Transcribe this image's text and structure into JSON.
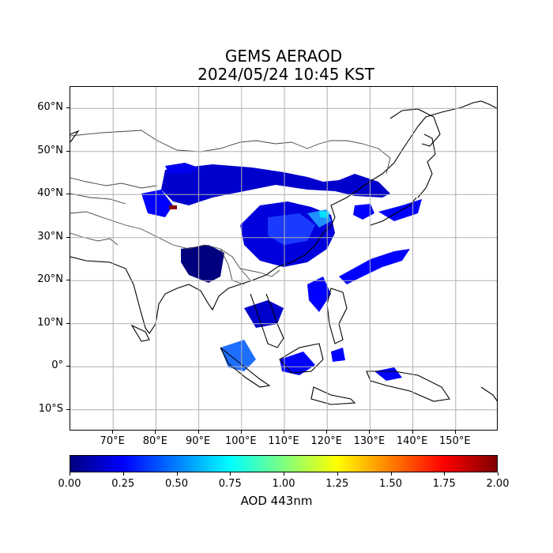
{
  "header": {
    "title": "GEMS AERAOD",
    "subtitle": "2024/05/24 10:45 KST"
  },
  "map": {
    "lat_range": [
      -15,
      65
    ],
    "lon_range": [
      60,
      160
    ],
    "grid": true,
    "lat_ticks": [
      "60°N",
      "50°N",
      "40°N",
      "30°N",
      "20°N",
      "10°N",
      "0°",
      "10°S"
    ],
    "lon_ticks": [
      "70°E",
      "80°E",
      "90°E",
      "100°E",
      "110°E",
      "120°E",
      "130°E",
      "140°E",
      "150°E"
    ],
    "layers": [
      "coastlines",
      "country-borders",
      "aerosol-optical-depth"
    ]
  },
  "colorbar": {
    "label": "AOD 443nm",
    "colormap": "jet",
    "range": [
      0.0,
      2.0
    ],
    "ticks": [
      "0.00",
      "0.25",
      "0.50",
      "0.75",
      "1.00",
      "1.25",
      "1.50",
      "1.75",
      "2.00"
    ],
    "colors": [
      "#00007f",
      "#0000ff",
      "#007fff",
      "#00ffff",
      "#7fff7f",
      "#ffff00",
      "#ff7f00",
      "#ff0000",
      "#7f0000"
    ]
  }
}
